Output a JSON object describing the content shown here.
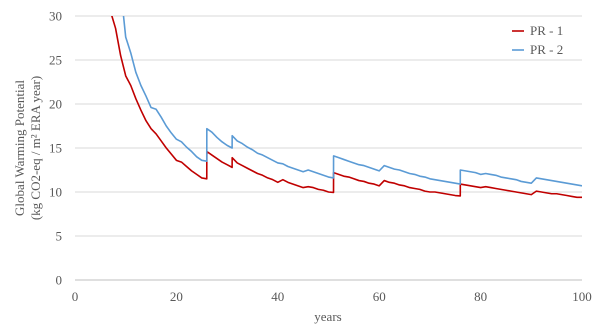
{
  "chart_data": {
    "type": "line",
    "title": "",
    "xlabel": "years",
    "ylabel": [
      "Global Warming Potential",
      "(kg CO2-eq / m² ERA year)"
    ],
    "xlim": [
      0,
      100
    ],
    "ylim": [
      0,
      30
    ],
    "x_ticks": [
      0,
      20,
      40,
      60,
      80,
      100
    ],
    "y_ticks": [
      0,
      5,
      10,
      15,
      20,
      25,
      30
    ],
    "grid": "horizontal",
    "legend": "top-right",
    "series": [
      {
        "name": "PR - 1",
        "color": "#c00000",
        "x": [
          6.5,
          8,
          9,
          10,
          11,
          12,
          13,
          14,
          15,
          16,
          17,
          18,
          19,
          20,
          21,
          22,
          23,
          24,
          25,
          25.99,
          26,
          27,
          28,
          29,
          30,
          30.99,
          31,
          32,
          33,
          34,
          35,
          36,
          37,
          38,
          39,
          40,
          41,
          42,
          43,
          44,
          45,
          46,
          47,
          48,
          49,
          50,
          50.99,
          51,
          52,
          53,
          54,
          55,
          56,
          57,
          58,
          59,
          60,
          61,
          62,
          63,
          64,
          65,
          66,
          67,
          68,
          69,
          70,
          71,
          72,
          73,
          74,
          75,
          75.99,
          76,
          77,
          78,
          79,
          80,
          81,
          82,
          83,
          84,
          85,
          86,
          87,
          88,
          89,
          90,
          91,
          92,
          93,
          94,
          95,
          96,
          97,
          98,
          99,
          100
        ],
        "values": [
          31.5,
          28.6,
          25.5,
          23.2,
          22.1,
          20.6,
          19.3,
          18.1,
          17.2,
          16.6,
          15.8,
          15.0,
          14.3,
          13.6,
          13.4,
          12.9,
          12.4,
          12.0,
          11.6,
          11.5,
          14.6,
          14.2,
          13.8,
          13.4,
          13.1,
          12.8,
          13.9,
          13.3,
          13.0,
          12.7,
          12.4,
          12.1,
          11.9,
          11.6,
          11.4,
          11.1,
          11.4,
          11.1,
          10.9,
          10.7,
          10.5,
          10.6,
          10.5,
          10.3,
          10.2,
          10.0,
          9.95,
          12.2,
          12.0,
          11.8,
          11.7,
          11.5,
          11.3,
          11.2,
          11.0,
          10.9,
          10.7,
          11.3,
          11.1,
          11.0,
          10.8,
          10.7,
          10.5,
          10.4,
          10.3,
          10.1,
          10.0,
          10.0,
          9.9,
          9.8,
          9.7,
          9.6,
          9.55,
          10.9,
          10.8,
          10.7,
          10.6,
          10.5,
          10.6,
          10.5,
          10.4,
          10.3,
          10.2,
          10.1,
          10.0,
          9.9,
          9.8,
          9.7,
          10.1,
          10.0,
          9.9,
          9.8,
          9.8,
          9.7,
          9.6,
          9.5,
          9.4,
          9.4
        ]
      },
      {
        "name": "PR - 2",
        "color": "#5b9bd5",
        "x": [
          9.3,
          10,
          11,
          12,
          13,
          14,
          15,
          16,
          17,
          18,
          19,
          20,
          21,
          22,
          23,
          24,
          25,
          25.99,
          26,
          27,
          28,
          29,
          30,
          30.99,
          31,
          32,
          33,
          34,
          35,
          36,
          37,
          38,
          39,
          40,
          41,
          42,
          43,
          44,
          45,
          46,
          47,
          48,
          49,
          50,
          50.99,
          51,
          52,
          53,
          54,
          55,
          56,
          57,
          58,
          59,
          60,
          61,
          62,
          63,
          64,
          65,
          66,
          67,
          68,
          69,
          70,
          71,
          72,
          73,
          74,
          75,
          75.99,
          76,
          77,
          78,
          79,
          80,
          81,
          82,
          83,
          84,
          85,
          86,
          87,
          88,
          89,
          90,
          91,
          92,
          93,
          94,
          95,
          96,
          97,
          98,
          99,
          100
        ],
        "values": [
          31.5,
          27.6,
          25.8,
          23.6,
          22.1,
          20.9,
          19.6,
          19.4,
          18.5,
          17.5,
          16.7,
          16.0,
          15.7,
          15.1,
          14.6,
          14.0,
          13.6,
          13.5,
          17.2,
          16.8,
          16.2,
          15.7,
          15.3,
          15.0,
          16.4,
          15.8,
          15.5,
          15.1,
          14.8,
          14.4,
          14.2,
          13.9,
          13.6,
          13.3,
          13.2,
          12.9,
          12.7,
          12.5,
          12.3,
          12.5,
          12.3,
          12.1,
          11.9,
          11.7,
          11.6,
          14.1,
          13.9,
          13.7,
          13.5,
          13.3,
          13.1,
          13.0,
          12.8,
          12.6,
          12.4,
          13.0,
          12.8,
          12.6,
          12.5,
          12.3,
          12.1,
          12.0,
          11.8,
          11.7,
          11.5,
          11.4,
          11.3,
          11.2,
          11.1,
          11.0,
          10.9,
          12.5,
          12.4,
          12.3,
          12.2,
          12.0,
          12.1,
          12.0,
          11.9,
          11.7,
          11.6,
          11.5,
          11.4,
          11.2,
          11.1,
          11.0,
          11.6,
          11.5,
          11.4,
          11.3,
          11.2,
          11.1,
          11.0,
          10.9,
          10.8,
          10.7
        ]
      }
    ]
  }
}
